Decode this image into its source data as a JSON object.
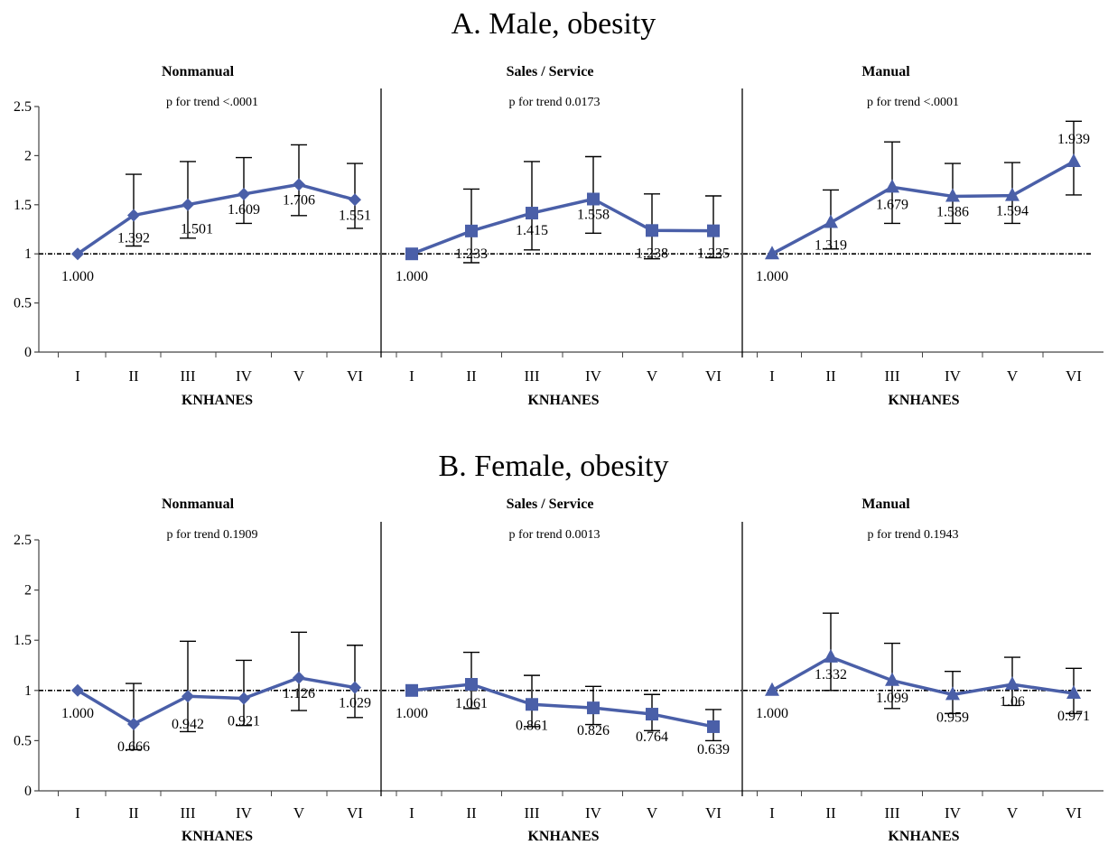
{
  "chart_data": [
    {
      "type": "line",
      "title": "A. Male, obesity",
      "ylim": [
        0,
        2.5
      ],
      "yticks": [
        "0",
        "0.5",
        "1",
        "1.5",
        "2",
        "2.5"
      ],
      "reference_line": 1,
      "groups": [
        {
          "name": "Nonmanual",
          "p_trend": "p for trend <.0001",
          "xlabel": "KNHANES",
          "categories": [
            "I",
            "II",
            "III",
            "IV",
            "V",
            "VI"
          ],
          "marker": "diamond",
          "color": "#4a5fa8",
          "values": [
            1.0,
            1.392,
            1.501,
            1.609,
            1.706,
            1.551
          ],
          "labels": [
            "1.000",
            "1.392",
            "1.501",
            "1.609",
            "1.706",
            "1.551"
          ],
          "ci_low": [
            null,
            1.08,
            1.16,
            1.31,
            1.39,
            1.26
          ],
          "ci_high": [
            null,
            1.81,
            1.94,
            1.98,
            2.11,
            1.92
          ]
        },
        {
          "name": "Sales / Service",
          "p_trend": "p for trend 0.0173",
          "xlabel": "KNHANES",
          "categories": [
            "I",
            "II",
            "III",
            "IV",
            "V",
            "VI"
          ],
          "marker": "square",
          "color": "#4a5fa8",
          "values": [
            1.0,
            1.233,
            1.415,
            1.558,
            1.238,
            1.235
          ],
          "labels": [
            "1.000",
            "1.233",
            "1.415",
            "1.558",
            "1.238",
            "1.235"
          ],
          "ci_low": [
            null,
            0.91,
            1.04,
            1.21,
            0.95,
            0.96
          ],
          "ci_high": [
            null,
            1.66,
            1.94,
            1.99,
            1.61,
            1.59
          ]
        },
        {
          "name": "Manual",
          "p_trend": "p for trend <.0001",
          "xlabel": "KNHANES",
          "categories": [
            "I",
            "II",
            "III",
            "IV",
            "V",
            "VI"
          ],
          "marker": "triangle",
          "color": "#4a5fa8",
          "values": [
            1.0,
            1.319,
            1.679,
            1.586,
            1.594,
            1.939
          ],
          "labels": [
            "1.000",
            "1.319",
            "1.679",
            "1.586",
            "1.594",
            "1.939"
          ],
          "ci_low": [
            null,
            1.05,
            1.31,
            1.31,
            1.31,
            1.6
          ],
          "ci_high": [
            null,
            1.65,
            2.14,
            1.92,
            1.93,
            2.35
          ]
        }
      ]
    },
    {
      "type": "line",
      "title": "B. Female, obesity",
      "ylim": [
        0,
        2.5
      ],
      "yticks": [
        "0",
        "0.5",
        "1",
        "1.5",
        "2",
        "2.5"
      ],
      "reference_line": 1,
      "groups": [
        {
          "name": "Nonmanual",
          "p_trend": "p for trend 0.1909",
          "xlabel": "KNHANES",
          "categories": [
            "I",
            "II",
            "III",
            "IV",
            "V",
            "VI"
          ],
          "marker": "diamond",
          "color": "#4a5fa8",
          "values": [
            1.0,
            0.666,
            0.942,
            0.921,
            1.126,
            1.029
          ],
          "labels": [
            "1.000",
            "0.666",
            "0.942",
            "0.921",
            "1.126",
            "1.029"
          ],
          "ci_low": [
            null,
            0.41,
            0.59,
            0.65,
            0.8,
            0.73
          ],
          "ci_high": [
            null,
            1.07,
            1.49,
            1.3,
            1.58,
            1.45
          ]
        },
        {
          "name": "Sales / Service",
          "p_trend": "p for trend 0.0013",
          "xlabel": "KNHANES",
          "categories": [
            "I",
            "II",
            "III",
            "IV",
            "V",
            "VI"
          ],
          "marker": "square",
          "color": "#4a5fa8",
          "values": [
            1.0,
            1.061,
            0.861,
            0.826,
            0.764,
            0.639
          ],
          "labels": [
            "1.000",
            "1.061",
            "0.861",
            "0.826",
            "0.764",
            "0.639"
          ],
          "ci_low": [
            null,
            0.82,
            0.64,
            0.66,
            0.6,
            0.5
          ],
          "ci_high": [
            null,
            1.38,
            1.15,
            1.04,
            0.96,
            0.81
          ]
        },
        {
          "name": "Manual",
          "p_trend": "p for trend 0.1943",
          "xlabel": "KNHANES",
          "categories": [
            "I",
            "II",
            "III",
            "IV",
            "V",
            "VI"
          ],
          "marker": "triangle",
          "color": "#4a5fa8",
          "values": [
            1.0,
            1.332,
            1.099,
            0.959,
            1.06,
            0.971
          ],
          "labels": [
            "1.000",
            "1.332",
            "1.099",
            "0.959",
            "1.06",
            "0.971"
          ],
          "ci_low": [
            null,
            1.0,
            0.82,
            0.77,
            0.85,
            0.77
          ],
          "ci_high": [
            null,
            1.77,
            1.47,
            1.19,
            1.33,
            1.22
          ]
        }
      ]
    }
  ]
}
